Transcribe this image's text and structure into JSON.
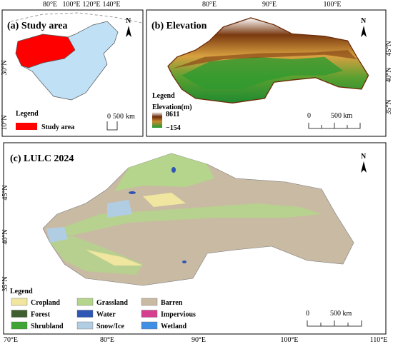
{
  "panel_a": {
    "title": "(a) Study area",
    "top_labels": [
      "80°E",
      "100°E",
      "120°E",
      "140°E"
    ],
    "left_labels": [
      "30°N",
      "10°N"
    ],
    "north": "N",
    "legend_title": "Legend",
    "legend_item": "Study area",
    "legend_color": "#ff0000",
    "scale": [
      "0",
      "500",
      "km"
    ]
  },
  "panel_b": {
    "title": "(b) Elevation",
    "top_labels": [
      "80°E",
      "90°E",
      "100°E"
    ],
    "right_labels": [
      "45°N",
      "40°N",
      "35°N"
    ],
    "north": "N",
    "legend_title": "Legend",
    "legend_subtitle": "Elevation(m)",
    "legend_max": "8611",
    "legend_min": "−154",
    "scale": [
      "0",
      "500 km"
    ]
  },
  "panel_c": {
    "title": "(c) LULC 2024",
    "bottom_labels": [
      "70°E",
      "80°E",
      "90°E",
      "100°E",
      "110°E"
    ],
    "left_labels": [
      "45°N",
      "40°N",
      "35°N"
    ],
    "north": "N",
    "legend_title": "Legend",
    "legend": [
      {
        "name": "Cropland",
        "color": "#f0e6a0"
      },
      {
        "name": "Grassland",
        "color": "#b5d48c"
      },
      {
        "name": "Barren",
        "color": "#c9baa3"
      },
      {
        "name": "Forest",
        "color": "#3f5f2f"
      },
      {
        "name": "Water",
        "color": "#2f55b5"
      },
      {
        "name": "Impervious",
        "color": "#d4408f"
      },
      {
        "name": "Shrubland",
        "color": "#3fa535"
      },
      {
        "name": "Snow/Ice",
        "color": "#b1cde3"
      },
      {
        "name": "Wetland",
        "color": "#3f8fe5"
      }
    ],
    "scale": [
      "0",
      "500 km"
    ]
  }
}
